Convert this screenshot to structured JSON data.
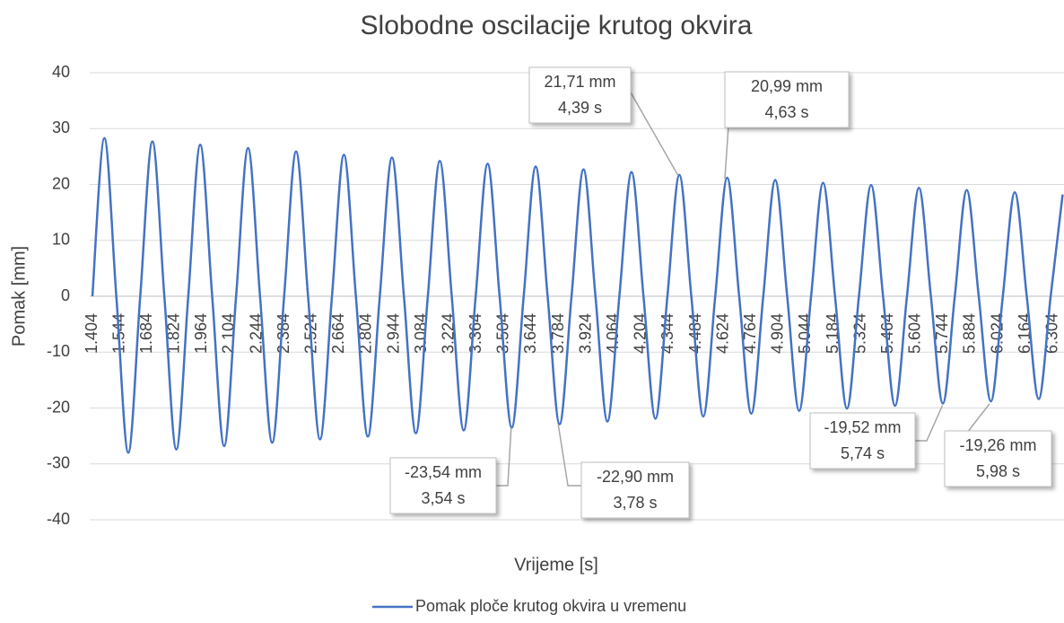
{
  "chart_data": {
    "type": "line",
    "title": "Slobodne oscilacije krutog okvira",
    "x_label": "Vrijeme [s]",
    "y_label": "Pomak [mm]",
    "xlim": [
      1.404,
      6.36
    ],
    "xticks": [
      1.404,
      1.544,
      1.684,
      1.824,
      1.964,
      2.104,
      2.244,
      2.384,
      2.524,
      2.664,
      2.804,
      2.944,
      3.084,
      3.224,
      3.364,
      3.504,
      3.644,
      3.784,
      3.924,
      4.064,
      4.204,
      4.344,
      4.484,
      4.624,
      4.764,
      4.904,
      5.044,
      5.184,
      5.324,
      5.464,
      5.604,
      5.744,
      5.884,
      6.024,
      6.164,
      6.304
    ],
    "ylim": [
      -40,
      40
    ],
    "yticks": [
      -40,
      -30,
      -20,
      -10,
      0,
      10,
      20,
      30,
      40
    ],
    "grid": true,
    "legend": "bottom",
    "x": [
      1.404,
      1.465,
      1.526,
      1.587,
      1.648,
      1.71,
      1.771,
      1.832,
      1.893,
      1.954,
      2.015,
      2.076,
      2.137,
      2.198,
      2.259,
      2.321,
      2.382,
      2.443,
      2.504,
      2.565,
      2.626,
      2.687,
      2.748,
      2.809,
      2.87,
      2.932,
      2.993,
      3.054,
      3.115,
      3.176,
      3.237,
      3.298,
      3.359,
      3.42,
      3.481,
      3.543,
      3.604,
      3.665,
      3.726,
      3.787,
      3.848,
      3.909,
      3.97,
      4.031,
      4.092,
      4.154,
      4.215,
      4.276,
      4.337,
      4.398,
      4.459,
      4.52,
      4.581,
      4.642,
      4.703,
      4.765,
      4.826,
      4.887,
      4.948,
      5.009,
      5.07,
      5.131,
      5.192,
      5.253,
      5.314,
      5.376,
      5.437,
      5.498,
      5.559,
      5.62,
      5.681,
      5.742,
      5.803,
      5.864,
      5.925,
      5.987,
      6.048,
      6.109,
      6.17,
      6.231,
      6.292,
      6.353
    ],
    "series": [
      {
        "name": "Pomak ploče krutog okvira u vremenu",
        "color": "#4472c4",
        "values": [
          0,
          28.3,
          0,
          -28.0,
          0,
          27.7,
          0,
          -27.4,
          0,
          27.1,
          0,
          -26.8,
          0,
          26.5,
          0,
          -26.2,
          0,
          25.9,
          0,
          -25.6,
          0,
          25.3,
          0,
          -25.1,
          0,
          24.8,
          0,
          -24.5,
          0,
          24.2,
          0,
          -24.0,
          0,
          23.7,
          0,
          -23.5,
          0,
          23.2,
          0,
          -22.9,
          0,
          22.7,
          0,
          -22.4,
          0,
          22.2,
          0,
          -21.9,
          0,
          21.7,
          0,
          -21.5,
          0,
          21.2,
          0,
          -21.0,
          0,
          20.8,
          0,
          -20.5,
          0,
          20.3,
          0,
          -20.1,
          0,
          19.9,
          0,
          -19.6,
          0,
          19.4,
          0,
          -19.2,
          0,
          19.0,
          0,
          -18.8,
          0,
          18.6,
          0,
          -18.4,
          0,
          18.2
        ]
      }
    ],
    "annotations": [
      {
        "lines": [
          "21,71 mm",
          "4,39 s"
        ],
        "x": 4.39,
        "y": 21.71
      },
      {
        "lines": [
          "20,99 mm",
          "4,63 s"
        ],
        "x": 4.63,
        "y": 20.99
      },
      {
        "lines": [
          "-23,54 mm",
          "3,54 s"
        ],
        "x": 3.54,
        "y": -23.54
      },
      {
        "lines": [
          "-22,90 mm",
          "3,78 s"
        ],
        "x": 3.78,
        "y": -22.9
      },
      {
        "lines": [
          "-19,52 mm",
          "5,74 s"
        ],
        "x": 5.74,
        "y": -19.52
      },
      {
        "lines": [
          "-19,26 mm",
          "5,98 s"
        ],
        "x": 5.98,
        "y": -19.26
      }
    ]
  }
}
